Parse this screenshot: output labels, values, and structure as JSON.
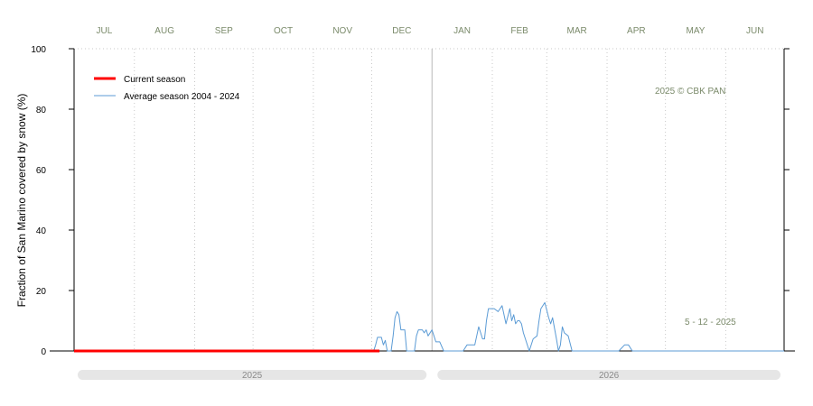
{
  "chart_data": {
    "type": "line",
    "ylabel": "Fraction of  San Marino  covered by snow (%)",
    "ylim": [
      0,
      100
    ],
    "yticks": [
      "0",
      "20",
      "40",
      "60",
      "80",
      "100"
    ],
    "months": [
      "JUL",
      "AUG",
      "SEP",
      "OCT",
      "NOV",
      "DEC",
      "JAN",
      "FEB",
      "MAR",
      "APR",
      "MAY",
      "JUN"
    ],
    "years": [
      "2025",
      "2026"
    ],
    "copyright": "2025  © CBK PAN",
    "date_note": "5 - 12 - 2025",
    "grid": true,
    "legend_position": "top-left",
    "series": [
      {
        "name": "Current season",
        "color": "#ff0000",
        "x": [
          0,
          157
        ],
        "y": [
          0,
          0
        ]
      },
      {
        "name": "Average season 2004 - 2024",
        "color": "#5b9bd5",
        "x": [
          0,
          154,
          155,
          156,
          158,
          159,
          160,
          161,
          162,
          163,
          164,
          165,
          166,
          167,
          168,
          169,
          170,
          171,
          172,
          173,
          174,
          175,
          176,
          177,
          178,
          179,
          180,
          181,
          182,
          184,
          185,
          186,
          188,
          190,
          194,
          196,
          198,
          200,
          202,
          206,
          208,
          209,
          210,
          211,
          212,
          213,
          214,
          216,
          218,
          220,
          222,
          224,
          225,
          226,
          227,
          228,
          229,
          230,
          231,
          232,
          234,
          236,
          238,
          239,
          240,
          242,
          244,
          245,
          246,
          248,
          249,
          250,
          251,
          252,
          254,
          256,
          260,
          270,
          280,
          283,
          285,
          287,
          290,
          300,
          320,
          340,
          365
        ],
        "y": [
          0,
          0,
          2,
          4.5,
          4.5,
          2,
          3.5,
          0,
          0,
          0,
          5,
          11,
          13,
          12,
          7,
          7,
          7,
          0,
          0,
          0,
          0,
          0,
          5,
          7,
          7,
          7,
          6,
          7,
          5,
          7,
          5,
          3,
          3,
          0,
          0,
          0,
          0,
          0,
          2,
          2,
          8,
          6,
          4,
          4,
          10,
          14,
          14,
          14,
          13,
          15,
          9,
          14,
          10,
          12,
          9,
          10,
          10,
          9,
          6,
          4,
          0,
          4,
          5,
          10,
          14,
          16,
          11,
          9,
          11,
          4,
          0,
          2,
          8,
          6,
          5,
          0,
          0,
          0,
          0,
          2,
          2,
          0,
          0,
          0,
          0,
          0,
          0
        ]
      }
    ]
  }
}
